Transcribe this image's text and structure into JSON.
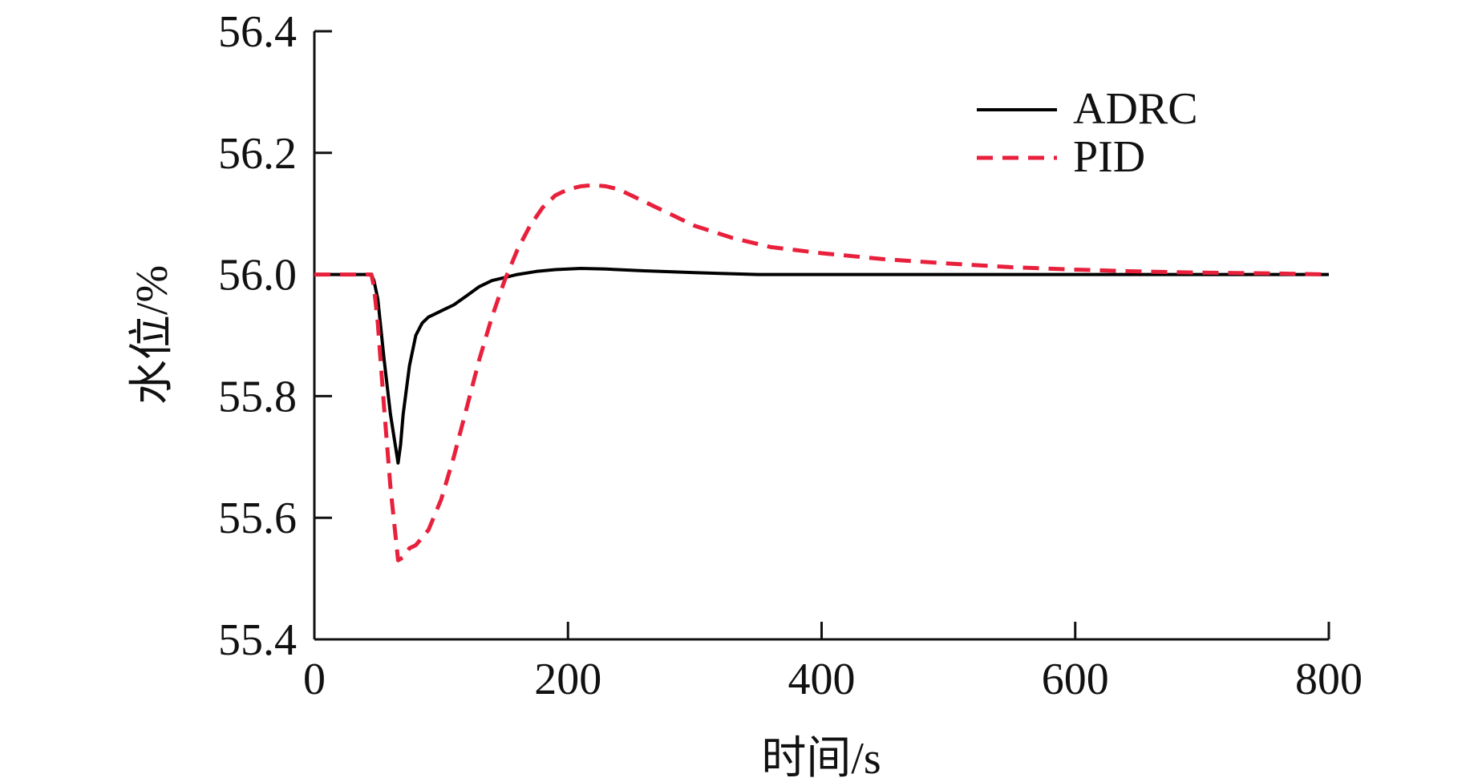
{
  "chart_data": {
    "type": "line",
    "title": "",
    "xlabel": "时间/s",
    "ylabel": "水位/%",
    "xlim": [
      0,
      800
    ],
    "ylim": [
      55.4,
      56.4
    ],
    "xticks": [
      0,
      200,
      400,
      600,
      800
    ],
    "xtick_labels": [
      "0",
      "200",
      "400",
      "600",
      "800"
    ],
    "yticks": [
      55.4,
      55.6,
      55.8,
      56.0,
      56.2,
      56.4
    ],
    "ytick_labels": [
      "55.4",
      "55.6",
      "55.8",
      "56.0",
      "56.2",
      "56.4"
    ],
    "grid": false,
    "legend_position": "top-right",
    "series": [
      {
        "name": "ADRC",
        "color": "#000000",
        "dash": "solid",
        "x": [
          0,
          45,
          47,
          50,
          55,
          60,
          66,
          68,
          70,
          75,
          80,
          85,
          90,
          95,
          100,
          110,
          120,
          130,
          140,
          150,
          160,
          175,
          190,
          210,
          230,
          260,
          300,
          350,
          400,
          500,
          600,
          700,
          800
        ],
        "y": [
          56.0,
          56.0,
          55.99,
          55.96,
          55.86,
          55.77,
          55.69,
          55.72,
          55.77,
          55.85,
          55.9,
          55.92,
          55.93,
          55.935,
          55.94,
          55.95,
          55.965,
          55.98,
          55.99,
          55.995,
          56.0,
          56.005,
          56.008,
          56.01,
          56.009,
          56.006,
          56.003,
          56.0,
          56.0,
          56.0,
          56.0,
          56.0,
          56.0
        ]
      },
      {
        "name": "PID",
        "color": "#e8203c",
        "dash": "dashed",
        "x": [
          0,
          45,
          47,
          50,
          55,
          60,
          66,
          70,
          75,
          80,
          90,
          100,
          110,
          120,
          130,
          140,
          150,
          160,
          170,
          180,
          190,
          200,
          210,
          220,
          230,
          240,
          260,
          280,
          300,
          330,
          360,
          400,
          450,
          500,
          550,
          600,
          650,
          700,
          750,
          800
        ],
        "y": [
          56.0,
          56.0,
          55.98,
          55.92,
          55.78,
          55.65,
          55.53,
          55.535,
          55.55,
          55.555,
          55.58,
          55.63,
          55.7,
          55.78,
          55.86,
          55.93,
          55.99,
          56.04,
          56.08,
          56.11,
          56.13,
          56.14,
          56.145,
          56.147,
          56.145,
          56.14,
          56.12,
          56.1,
          56.08,
          56.06,
          56.045,
          56.035,
          56.025,
          56.018,
          56.012,
          56.008,
          56.005,
          56.003,
          56.002,
          56.0
        ]
      }
    ]
  }
}
